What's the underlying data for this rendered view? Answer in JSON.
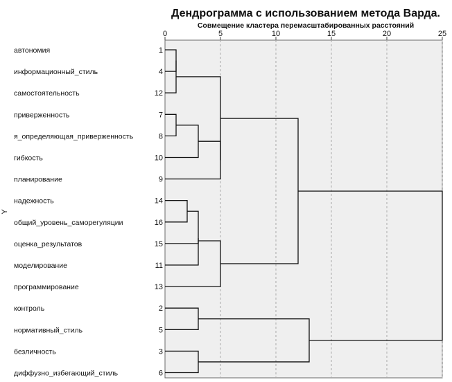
{
  "chart_data": {
    "type": "dendrogram",
    "title": "Дендрограмма с использованием метода Варда.",
    "subtitle": "Совмещение кластера перемасштабированных расстояний",
    "ylabel": "Y",
    "xlim": [
      0,
      25
    ],
    "ticks": [
      0,
      5,
      10,
      15,
      20,
      25
    ],
    "grid": true,
    "plot_background": "#efefef",
    "line_color": "#111111",
    "grid_color": "#a8a8a8",
    "leaves": [
      {
        "number": "1",
        "label": "автономия"
      },
      {
        "number": "4",
        "label": "информационный_стиль"
      },
      {
        "number": "12",
        "label": "самостоятельность"
      },
      {
        "number": "7",
        "label": "приверженность"
      },
      {
        "number": "8",
        "label": "я_определяющая_приверженность"
      },
      {
        "number": "10",
        "label": "гибкость"
      },
      {
        "number": "9",
        "label": "планирование"
      },
      {
        "number": "14",
        "label": "надежность"
      },
      {
        "number": "16",
        "label": "общий_уровень_саморегуляции"
      },
      {
        "number": "15",
        "label": "оценка_результатов"
      },
      {
        "number": "11",
        "label": "моделирование"
      },
      {
        "number": "13",
        "label": "программирование"
      },
      {
        "number": "2",
        "label": "контроль"
      },
      {
        "number": "5",
        "label": "нормативный_стиль"
      },
      {
        "number": "3",
        "label": "безличность"
      },
      {
        "number": "6",
        "label": "диффузно_избегающий_стиль"
      }
    ],
    "merges": [
      {
        "left": "L0",
        "right": "L1",
        "height": 1
      },
      {
        "left": "M0",
        "right": "L2",
        "height": 1
      },
      {
        "left": "L3",
        "right": "L4",
        "height": 1
      },
      {
        "left": "M2",
        "right": "L5",
        "height": 3
      },
      {
        "left": "M3",
        "right": "L6",
        "height": 5
      },
      {
        "left": "M1",
        "right": "M4",
        "height": 5
      },
      {
        "left": "L7",
        "right": "L8",
        "height": 2
      },
      {
        "left": "M6",
        "right": "L10",
        "height": 3
      },
      {
        "left": "L9",
        "right": "M7",
        "height": 3
      },
      {
        "left": "M8",
        "right": "L11",
        "height": 5
      },
      {
        "left": "M5",
        "right": "M9",
        "height": 12
      },
      {
        "left": "L12",
        "right": "L13",
        "height": 3
      },
      {
        "left": "L14",
        "right": "L15",
        "height": 3
      },
      {
        "left": "M11",
        "right": "M12",
        "height": 13
      },
      {
        "left": "M10",
        "right": "M13",
        "height": 25
      }
    ]
  }
}
